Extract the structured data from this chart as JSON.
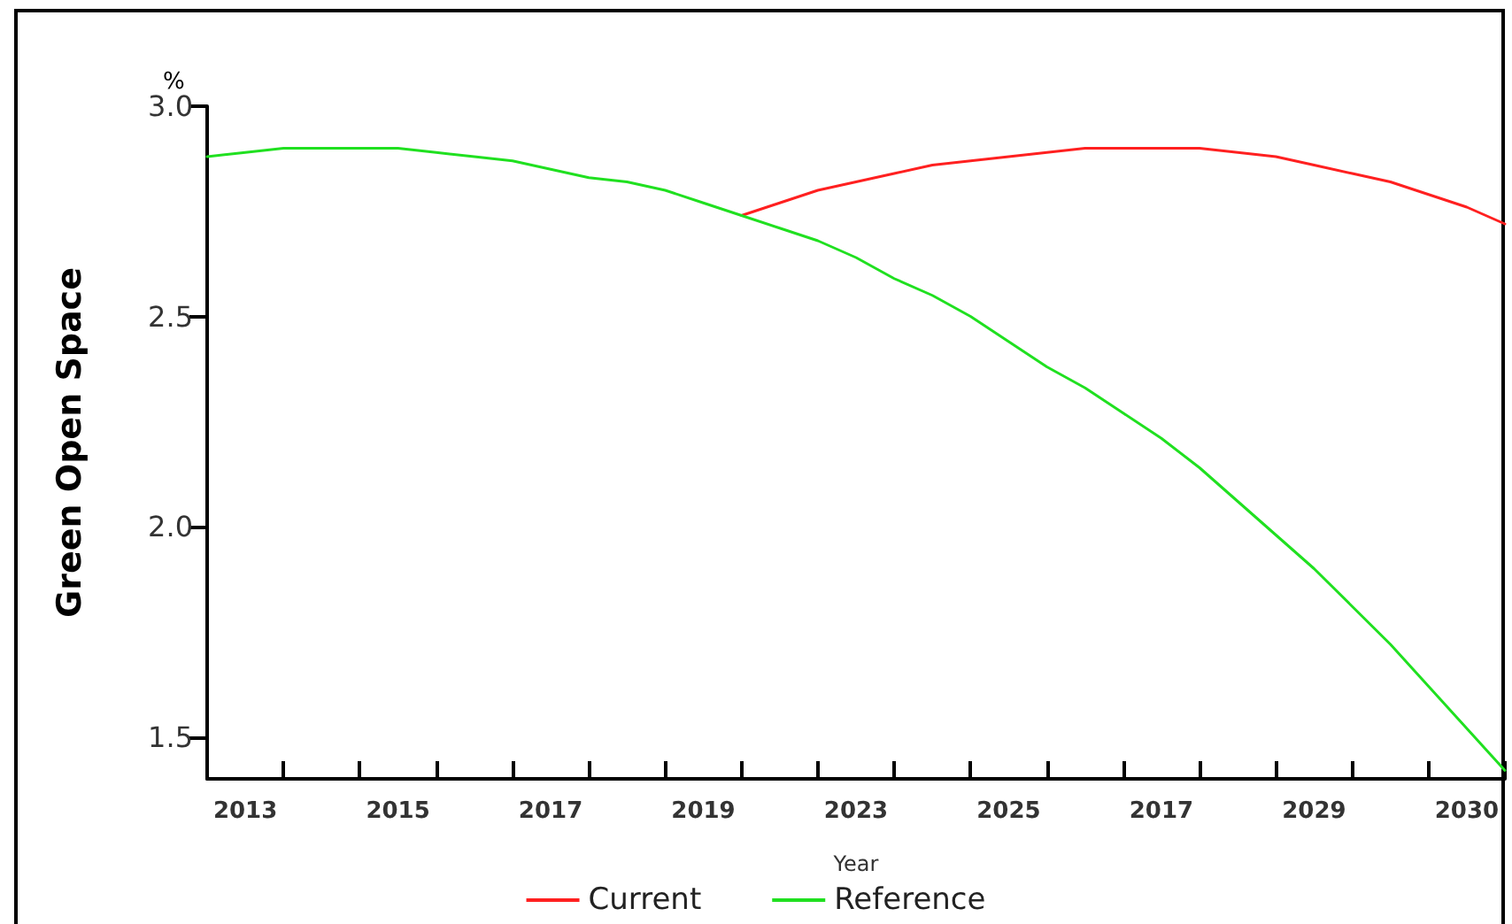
{
  "chart_data": {
    "type": "line",
    "xlabel": "Year",
    "ylabel": "Green Open Space",
    "annotations": [
      "%"
    ],
    "categories": [
      null,
      "2013",
      null,
      null,
      null,
      "2015",
      null,
      null,
      null,
      "2017",
      null,
      null,
      null,
      "2019",
      null,
      null,
      null,
      "2023",
      null,
      null,
      null,
      "2025",
      null,
      null,
      null,
      "2017",
      null,
      null,
      null,
      "2029",
      null,
      null,
      null,
      "2030",
      null
    ],
    "series": [
      {
        "name": "Current",
        "color": "#ff2020",
        "values": [
          null,
          null,
          null,
          null,
          null,
          null,
          null,
          null,
          null,
          null,
          null,
          null,
          null,
          null,
          2.74,
          2.77,
          2.8,
          2.82,
          2.84,
          2.86,
          2.87,
          2.88,
          2.89,
          2.9,
          2.9,
          2.9,
          2.9,
          2.89,
          2.88,
          2.86,
          2.84,
          2.82,
          2.79,
          2.76,
          2.72
        ]
      },
      {
        "name": "Reference",
        "color": "#20e020",
        "values": [
          2.88,
          2.89,
          2.9,
          2.9,
          2.9,
          2.9,
          2.89,
          2.88,
          2.87,
          2.85,
          2.83,
          2.82,
          2.8,
          2.77,
          2.74,
          2.71,
          2.68,
          2.64,
          2.59,
          2.55,
          2.5,
          2.44,
          2.38,
          2.33,
          2.27,
          2.21,
          2.14,
          2.06,
          1.98,
          1.9,
          1.81,
          1.72,
          1.62,
          1.52,
          1.42
        ]
      }
    ],
    "ylim": [
      1.4,
      3.0
    ],
    "yticks": [
      {
        "value": 1.5,
        "label": "1.5"
      },
      {
        "value": 2.0,
        "label": "2.0"
      },
      {
        "value": 2.5,
        "label": "2.5"
      },
      {
        "value": 3.0,
        "label": "3.0"
      }
    ],
    "grid": false,
    "legend": "bottom",
    "marker": "none",
    "line_style": "solid"
  }
}
